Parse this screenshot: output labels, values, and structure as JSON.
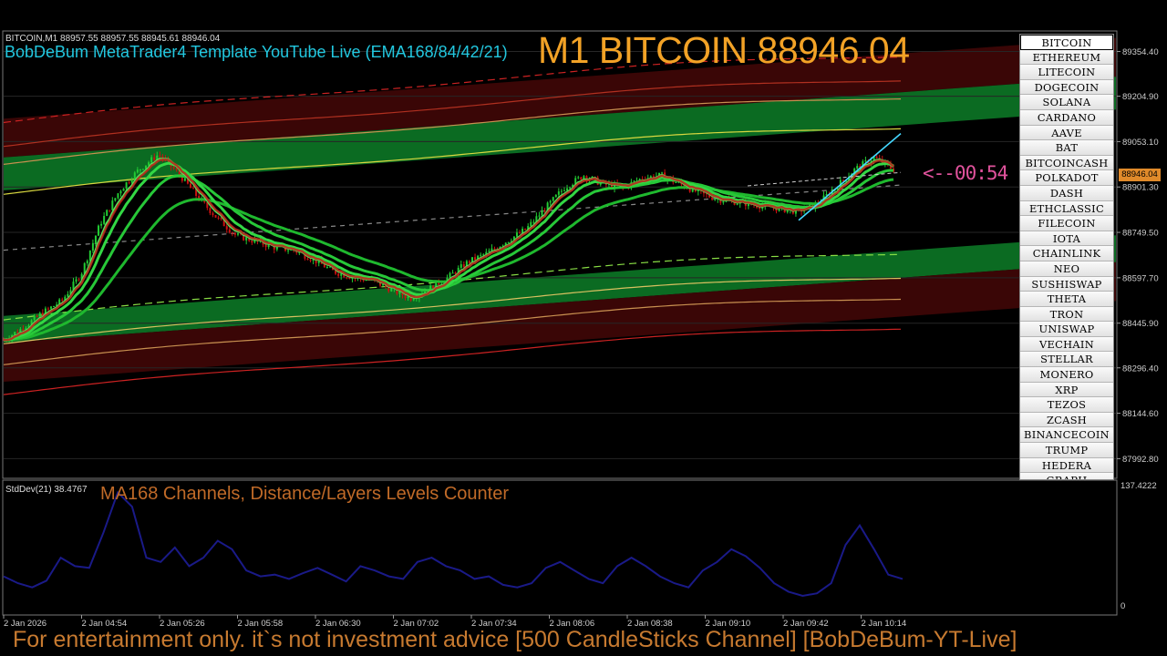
{
  "chart_data": [
    {
      "type": "candlestick",
      "symbol": "BITCOIN,M1",
      "header": {
        "symbol": "BITCOIN,M1",
        "ohlc": "88957.55 88957.55 88945.61 88946.04"
      },
      "title": "BobDeBum MetaTrader4 Template YouTube Live (EMA168/84/42/21)",
      "headline": "M1 BITCOIN 88946.04",
      "countdown": "<--00:54",
      "last_price": 88946.04,
      "y_ticks": [
        "89354.40",
        "89204.90",
        "89053.10",
        "88901.30",
        "88749.50",
        "88597.70",
        "88445.90",
        "88296.40",
        "88144.60",
        "87992.80"
      ],
      "y_tick_values": [
        89354.4,
        89204.9,
        89053.1,
        88901.3,
        88749.5,
        88597.7,
        88445.9,
        88296.4,
        88144.6,
        87992.8
      ],
      "ylim": [
        87930,
        89420
      ],
      "x_ticks": [
        "2 Jan 2026",
        "2 Jan 04:54",
        "2 Jan 05:26",
        "2 Jan 05:58",
        "2 Jan 06:30",
        "2 Jan 07:02",
        "2 Jan 07:34",
        "2 Jan 08:06",
        "2 Jan 08:38",
        "2 Jan 09:10",
        "2 Jan 09:42",
        "2 Jan 10:14"
      ],
      "series": [
        {
          "name": "EMA168",
          "color": "#22cc33"
        },
        {
          "name": "EMA84",
          "color": "#22cc33"
        },
        {
          "name": "EMA42",
          "color": "#22cc33"
        },
        {
          "name": "EMA21",
          "color": "#22cc33"
        }
      ],
      "price_path": [
        88390,
        88430,
        88480,
        88520,
        88610,
        88780,
        88890,
        88960,
        89010,
        88950,
        88870,
        88800,
        88740,
        88720,
        88700,
        88690,
        88660,
        88620,
        88600,
        88590,
        88560,
        88530,
        88560,
        88600,
        88650,
        88680,
        88720,
        88760,
        88830,
        88900,
        88940,
        88910,
        88900,
        88930,
        88940,
        88910,
        88880,
        88860,
        88850,
        88840,
        88830,
        88820,
        88840,
        88900,
        88960,
        89000,
        88960
      ],
      "channel_mid": [
        88690,
        88960
      ],
      "colors": {
        "up": "#22cc33",
        "down": "#cc1111",
        "grid": "#444444",
        "band_green": "#0b6b22",
        "band_red": "#3a0606"
      }
    },
    {
      "type": "line",
      "label": "StdDev(21) 38.4767",
      "title": "MA168 Channels, Distance/Layers Levels Counter",
      "y_ticks": [
        "137.4222",
        "0"
      ],
      "ylim": [
        0,
        137.4222
      ],
      "values": [
        38,
        30,
        25,
        33,
        60,
        50,
        48,
        90,
        137,
        120,
        60,
        55,
        72,
        50,
        60,
        80,
        70,
        45,
        38,
        40,
        35,
        42,
        48,
        40,
        32,
        50,
        45,
        38,
        35,
        55,
        60,
        50,
        45,
        35,
        38,
        28,
        25,
        30,
        48,
        55,
        45,
        35,
        30,
        50,
        60,
        50,
        38,
        30,
        25,
        45,
        55,
        70,
        62,
        48,
        30,
        20,
        15,
        18,
        30,
        75,
        98,
        70,
        40,
        35
      ],
      "color": "#1a1a88"
    }
  ],
  "symbols": {
    "active": "BITCOIN",
    "items": [
      "BITCOIN",
      "ETHEREUM",
      "LITECOIN",
      "DOGECOIN",
      "SOLANA",
      "CARDANO",
      "AAVE",
      "BAT",
      "BITCOINCASH",
      "POLKADOT",
      "DASH",
      "ETHCLASSIC",
      "FILECOIN",
      "IOTA",
      "CHAINLINK",
      "NEO",
      "SUSHISWAP",
      "THETA",
      "TRON",
      "UNISWAP",
      "VECHAIN",
      "STELLAR",
      "MONERO",
      "XRP",
      "TEZOS",
      "ZCASH",
      "BINANCECOIN",
      "TRUMP",
      "HEDERA",
      "GRAPH"
    ]
  },
  "price_tag": "88946.04",
  "footer": "For entertainment only. it`s not investment advice [500 CandleSticks Channel] [BobDeBum-YT-Live]"
}
